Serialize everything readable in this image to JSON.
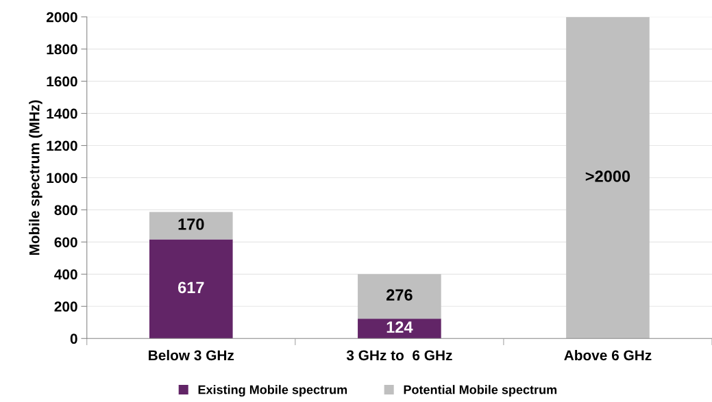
{
  "chart_data": {
    "type": "bar",
    "stacked": true,
    "ylabel": "Mobile spectrum (MHz)",
    "categories": [
      "Below 3 GHz",
      "3 GHz to  6 GHz",
      "Above 6 GHz"
    ],
    "series": [
      {
        "name": "Existing Mobile spectrum",
        "color": "#622567",
        "values": [
          617,
          124,
          null
        ],
        "value_labels": [
          "617",
          "124",
          null
        ]
      },
      {
        "name": "Potential Mobile spectrum",
        "color": "#bfbfbf",
        "values": [
          170,
          276,
          2000
        ],
        "value_labels": [
          "170",
          "276",
          ">2000"
        ]
      }
    ],
    "ylim": [
      0,
      2000
    ],
    "yticks": [
      0,
      200,
      400,
      600,
      800,
      1000,
      1200,
      1400,
      1600,
      1800,
      2000
    ],
    "grid": "y",
    "legend": "bottom"
  }
}
